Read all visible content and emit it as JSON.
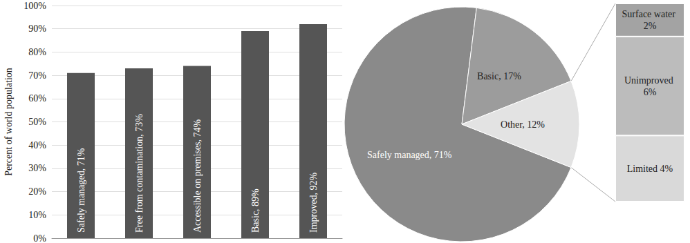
{
  "chart_data": [
    {
      "type": "bar",
      "ylabel": "Percent of world population",
      "categories": [
        "Safely managed",
        "Free from contamination",
        "Accessible on premises",
        "Basic",
        "Improved"
      ],
      "values": [
        71,
        73,
        74,
        89,
        92
      ],
      "value_labels": [
        "Safely managed, 71%",
        "Free from contamination, 73%",
        "Accessible on premises, 74%",
        "Basic, 89%",
        "Improved, 92%"
      ],
      "color": "#555555",
      "ylim": [
        0,
        100
      ],
      "yticks": [
        {
          "value": 0,
          "label": "0%"
        },
        {
          "value": 10,
          "label": "10%"
        },
        {
          "value": 20,
          "label": "20%"
        },
        {
          "value": 30,
          "label": "30%"
        },
        {
          "value": 40,
          "label": "40%"
        },
        {
          "value": 50,
          "label": "50%"
        },
        {
          "value": 60,
          "label": "60%"
        },
        {
          "value": 70,
          "label": "70%"
        },
        {
          "value": 80,
          "label": "80%"
        },
        {
          "value": 90,
          "label": "90%"
        },
        {
          "value": 100,
          "label": "100%"
        }
      ],
      "grid": true,
      "data_labels": true,
      "tick_labels": "y"
    },
    {
      "type": "pie",
      "categories": [
        "Safely managed",
        "Basic",
        "Other"
      ],
      "values": [
        71,
        17,
        12
      ],
      "value_labels": [
        "Safely managed, 71%",
        "Basic, 17%",
        "Other, 12%"
      ],
      "colors": [
        "#8a8a8a",
        "#9c9c9c",
        "#e3e3e3"
      ],
      "data_labels": true
    },
    {
      "type": "bar",
      "stacked": true,
      "categories": [
        null
      ],
      "series": [
        {
          "name": "Surface water",
          "color": "#a3a3a3",
          "values": [
            2
          ],
          "value_labels": [
            "Surface water 2%"
          ]
        },
        {
          "name": "Unimproved",
          "color": "#bcbcbc",
          "values": [
            6
          ],
          "value_labels": [
            "Unimproved 6%"
          ]
        },
        {
          "name": "Limited",
          "color": "#d9d9d9",
          "values": [
            4
          ],
          "value_labels": [
            "Limited 4%"
          ]
        }
      ],
      "data_labels": true,
      "tick_labels": false
    }
  ]
}
